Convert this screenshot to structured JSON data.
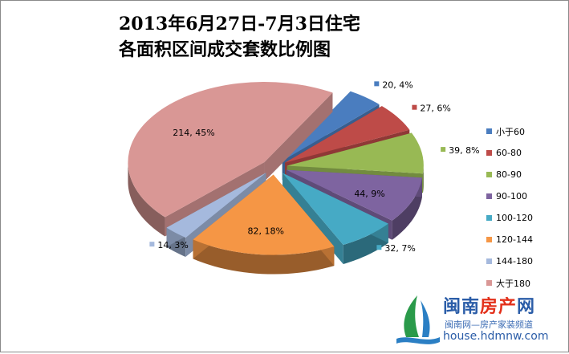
{
  "chart_data": {
    "type": "pie",
    "title_line1": "2013年6月27日-7月3日住宅",
    "title_line2": "各面积区间成交套数比例图",
    "slices": [
      {
        "name": "小于60",
        "value": 20,
        "percent": 4,
        "label": "20, 4%",
        "color": "#4a7dbf"
      },
      {
        "name": "60-80",
        "value": 27,
        "percent": 6,
        "label": "27, 6%",
        "color": "#be4b48"
      },
      {
        "name": "80-90",
        "value": 39,
        "percent": 8,
        "label": "39, 8%",
        "color": "#98b954"
      },
      {
        "name": "90-100",
        "value": 44,
        "percent": 9,
        "label": "44, 9%",
        "color": "#7e64a0"
      },
      {
        "name": "100-120",
        "value": 32,
        "percent": 7,
        "label": "32, 7%",
        "color": "#46aac5"
      },
      {
        "name": "120-144",
        "value": 82,
        "percent": 18,
        "label": "82, 18%",
        "color": "#f59645"
      },
      {
        "name": "144-180",
        "value": 14,
        "percent": 3,
        "label": "14, 3%",
        "color": "#a5b9dd"
      },
      {
        "name": "大于180",
        "value": 214,
        "percent": 45,
        "label": "214, 45%",
        "color": "#d99795"
      }
    ],
    "legend_position": "right",
    "exploded": true,
    "three_d": true
  },
  "watermark": {
    "brand_main": "闽南",
    "brand_accent": "房产",
    "brand_tail": "网",
    "slogan": "闽南网—房产家装频道",
    "url": "house.hdmnw.com"
  }
}
